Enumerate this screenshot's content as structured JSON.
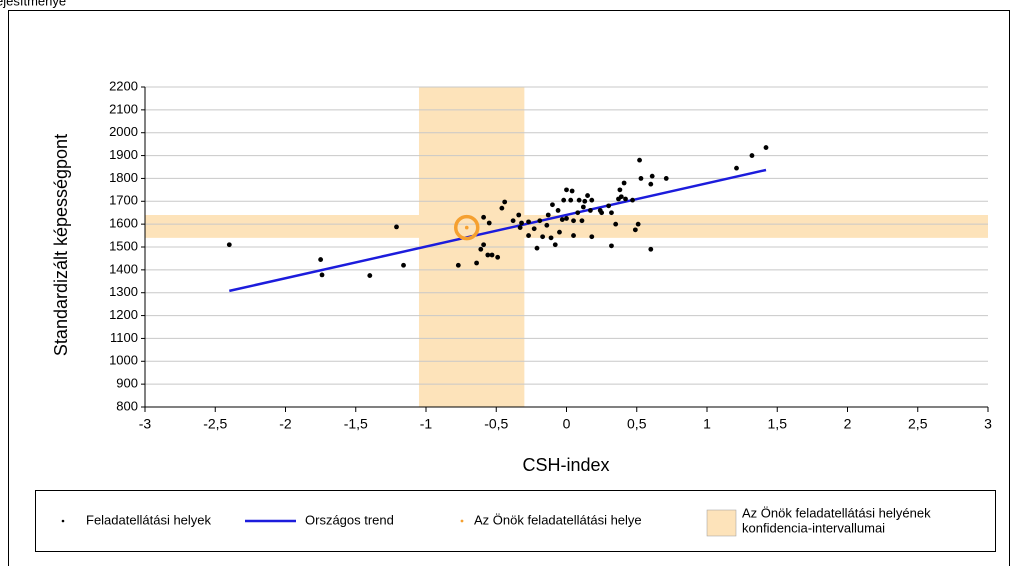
{
  "page_header": "ejesítménye",
  "chart_data": {
    "type": "scatter",
    "xlabel": "CSH-index",
    "ylabel": "Standardizált képességpont",
    "xlim": [
      -3,
      3
    ],
    "ylim": [
      800,
      2200
    ],
    "xticks": [
      -3,
      {
        "value": -2.5,
        "label": "-2,5"
      },
      -2,
      {
        "value": -1.5,
        "label": "-1,5"
      },
      -1,
      {
        "value": -0.5,
        "label": "-0,5"
      },
      0,
      {
        "value": 0.5,
        "label": "0,5"
      },
      1,
      {
        "value": 1.5,
        "label": "1,5"
      },
      2,
      {
        "value": 2.5,
        "label": "2,5"
      },
      3
    ],
    "yticks": [
      800,
      900,
      1000,
      1100,
      1200,
      1300,
      1400,
      1500,
      1600,
      1700,
      1800,
      1900,
      2000,
      2100,
      2200
    ],
    "grid": true,
    "legend": "bottom",
    "series": [
      {
        "name": "Feladatellátási helyek",
        "color": "#000000",
        "x": [
          -2.4,
          -1.75,
          -1.74,
          -1.4,
          -1.21,
          -1.16,
          -0.77,
          -0.64,
          -0.61,
          -0.59,
          -0.56,
          -0.59,
          -0.55,
          -0.53,
          -0.49,
          -0.46,
          -0.44,
          -0.38,
          -0.34,
          -0.33,
          -0.32,
          -0.27,
          -0.27,
          -0.23,
          -0.21,
          -0.19,
          -0.17,
          -0.14,
          -0.13,
          -0.11,
          -0.1,
          -0.08,
          -0.06,
          -0.05,
          -0.03,
          -0.02,
          0.0,
          0.0,
          0.03,
          0.04,
          0.05,
          0.05,
          0.08,
          0.09,
          0.11,
          0.12,
          0.13,
          0.15,
          0.17,
          0.18,
          0.18,
          0.24,
          0.25,
          0.3,
          0.32,
          0.32,
          0.35,
          0.37,
          0.38,
          0.39,
          0.41,
          0.42,
          0.47,
          0.49,
          0.51,
          0.52,
          0.53,
          0.6,
          0.61,
          0.6,
          0.71,
          1.21,
          1.32,
          1.42
        ],
        "y": [
          1510,
          1445,
          1378,
          1375,
          1588,
          1420,
          1420,
          1430,
          1490,
          1510,
          1465,
          1630,
          1605,
          1465,
          1455,
          1670,
          1697,
          1615,
          1640,
          1585,
          1605,
          1610,
          1550,
          1580,
          1495,
          1615,
          1545,
          1595,
          1640,
          1540,
          1685,
          1510,
          1660,
          1565,
          1620,
          1705,
          1625,
          1750,
          1705,
          1745,
          1615,
          1550,
          1650,
          1705,
          1615,
          1675,
          1700,
          1725,
          1660,
          1545,
          1705,
          1660,
          1650,
          1680,
          1505,
          1650,
          1600,
          1710,
          1750,
          1720,
          1780,
          1710,
          1705,
          1575,
          1600,
          1880,
          1800,
          1775,
          1810,
          1490,
          1800,
          1845,
          1900,
          1935
        ]
      }
    ],
    "trend": {
      "name": "Országos trend",
      "color": "#1c1cdc",
      "x": [
        -2.4,
        1.42
      ],
      "y": [
        1308,
        1837
      ]
    },
    "highlight": {
      "name": "Az Önök feladatellátási helye",
      "color": "#f5a030",
      "x": [
        -0.71
      ],
      "y": [
        1585
      ]
    },
    "confidence": {
      "name_lines": [
        "Az Önök feladatellátási helyének",
        "konfidencia-intervallumai"
      ],
      "color": "#fde3ba",
      "x_range": [
        -1.05,
        -0.3
      ],
      "y_range": [
        1540,
        1640
      ]
    }
  }
}
